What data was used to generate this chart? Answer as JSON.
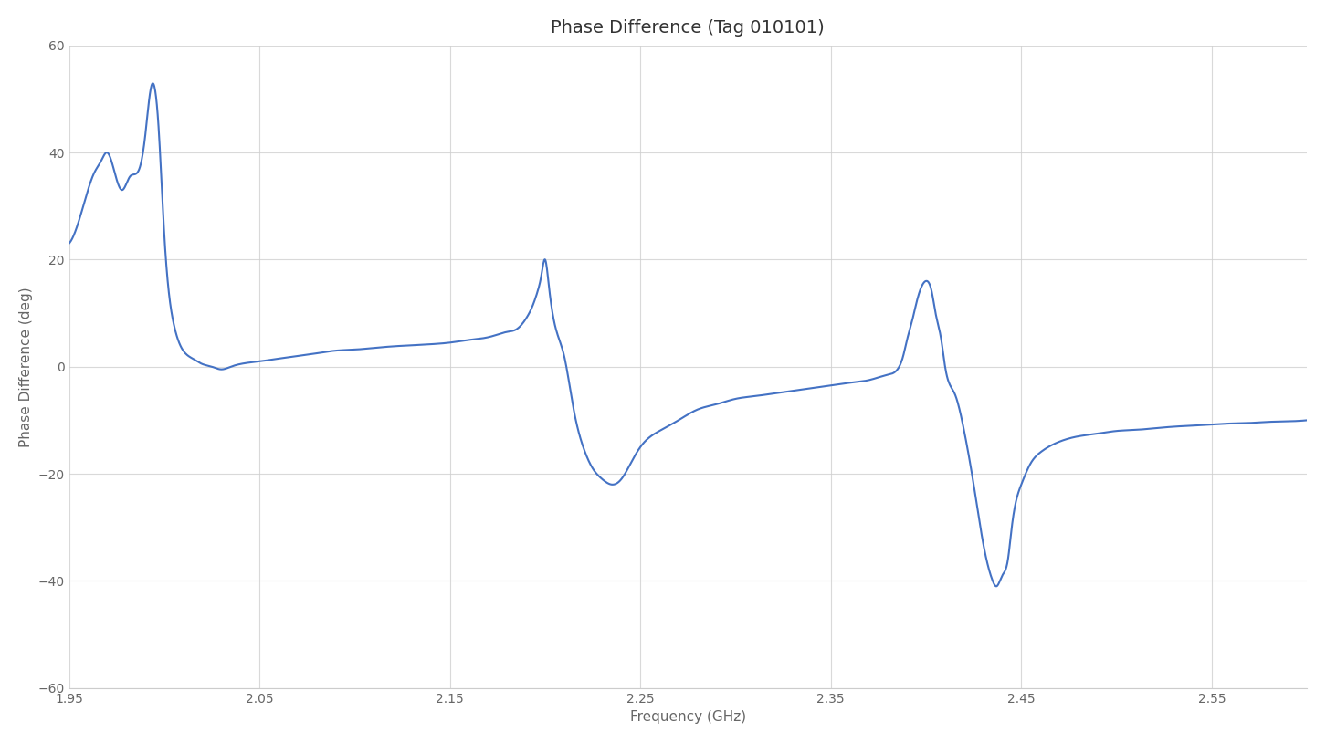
{
  "title": "Phase Difference (Tag 010101)",
  "xlabel": "Frequency (GHz)",
  "ylabel": "Phase Difference (deg)",
  "xlim": [
    1.95,
    2.6
  ],
  "ylim": [
    -60,
    60
  ],
  "yticks": [
    -60,
    -40,
    -20,
    0,
    20,
    40,
    60
  ],
  "xticks": [
    1.95,
    2.05,
    2.15,
    2.25,
    2.35,
    2.45,
    2.55
  ],
  "line_color": "#4472C4",
  "line_width": 1.5,
  "background_color": "#ffffff",
  "grid_color": "#d0d0d0",
  "title_fontsize": 14,
  "label_fontsize": 11
}
